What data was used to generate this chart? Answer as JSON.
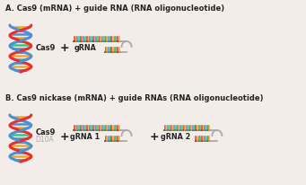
{
  "title_a": "A. Cas9 (mRNA) + guide RNA (RNA oligonucleotide)",
  "title_b": "B. Cas9 nickase (mRNA) + guide RNAs (RNA oligonucleotide)",
  "cas9_label": "Cas9",
  "cas9_d10a_label1": "Cas9",
  "cas9_d10a_label2": "D10A",
  "grna_label": "gRNA",
  "grna1_label": "gRNA 1",
  "grna2_label": "gRNA 2",
  "plus_sign": "+",
  "bg_color": "#f2ede8",
  "bar_colors": [
    "#e63030",
    "#f5a623",
    "#4a90d9",
    "#2ecc71"
  ],
  "d10a_color": "#aaaaaa",
  "strand1_color": "#e63030",
  "strand2_color": "#f5a623",
  "strand3_color": "#4a90d9",
  "line_color": "#555555",
  "loop_color": "#aaaaaa",
  "label_color": "#222222"
}
